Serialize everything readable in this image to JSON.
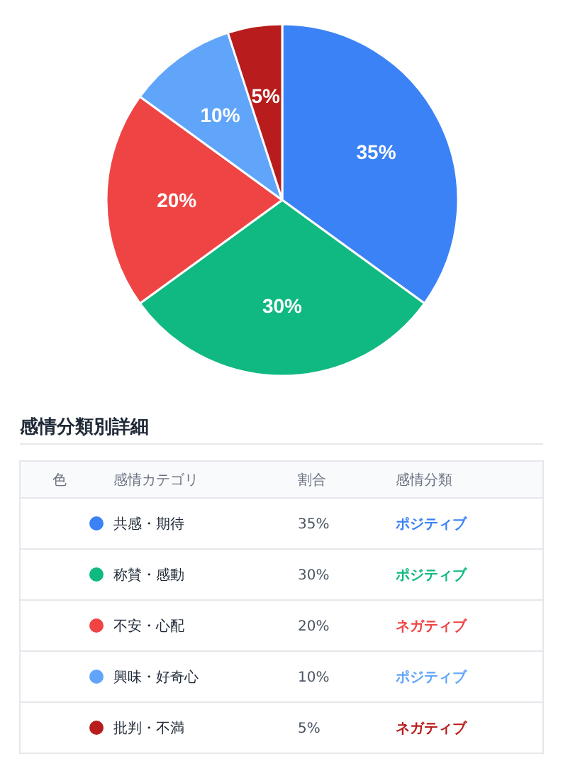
{
  "chart_data": {
    "type": "pie",
    "title": "感情分類別詳細",
    "categories": [
      "共感・期待",
      "称賛・感動",
      "不安・心配",
      "興味・好奇心",
      "批判・不満"
    ],
    "values": [
      35,
      30,
      20,
      10,
      5
    ],
    "value_labels": [
      "35%",
      "30%",
      "20%",
      "10%",
      "5%"
    ],
    "colors": [
      "#3b82f6",
      "#10b981",
      "#ef4444",
      "#60a5fa",
      "#b91c1c"
    ],
    "legend": "bottom",
    "annotations": [
      "色",
      "感情カテゴリ",
      "割合",
      "感情分類",
      "ポジティブ",
      "ポジティブ",
      "ネガティブ",
      "ポジティブ",
      "ネガティブ"
    ]
  }
}
